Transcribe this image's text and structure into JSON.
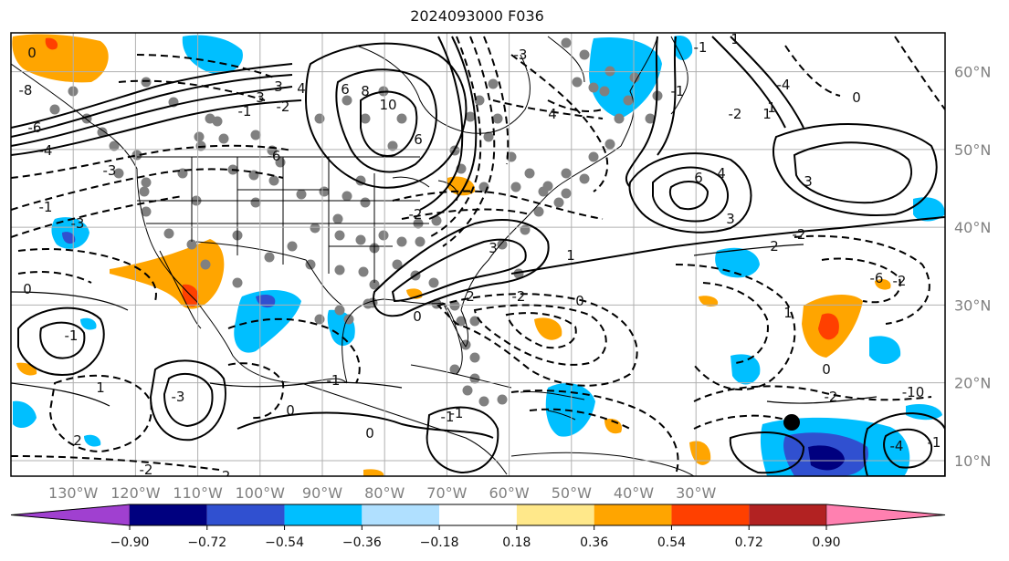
{
  "title": "2024093000 F036",
  "map": {
    "lon_range": [
      -140,
      10
    ],
    "lat_range": [
      8,
      65
    ],
    "lat_labels": [
      "60°N",
      "50°N",
      "40°N",
      "30°N",
      "20°N",
      "10°N"
    ],
    "lat_values": [
      60,
      50,
      40,
      30,
      20,
      10
    ],
    "lon_labels": [
      "130°W",
      "120°W",
      "110°W",
      "100°W",
      "90°W",
      "80°W",
      "70°W",
      "60°W",
      "50°W",
      "40°W",
      "30°W"
    ],
    "lon_values": [
      -130,
      -120,
      -110,
      -100,
      -90,
      -80,
      -70,
      -60,
      -50,
      -40,
      -30
    ],
    "grid": true,
    "contour_labels": [
      "0",
      "-8",
      "-6",
      "-4",
      "-3",
      "-1",
      "-3",
      "3",
      "4",
      "8",
      "10",
      "6",
      "-6",
      "-2",
      "-1",
      "3",
      "6",
      "4",
      "-1",
      "1",
      "-3",
      "-2",
      "3",
      "1",
      "2",
      "0",
      "-2",
      "0",
      "-1",
      "-3",
      "-2",
      "2",
      "1",
      "-1",
      "0",
      "0",
      "-1",
      "-2",
      "2",
      "1",
      "0",
      "-10",
      "-4",
      "-2",
      "1",
      "-4",
      "3",
      "0",
      "6",
      "4",
      "-6",
      "-2",
      "3",
      "-1",
      "-1",
      "-2",
      "0",
      "-1",
      "-2",
      "1"
    ]
  },
  "colorbar": {
    "ticks": [
      "−0.90",
      "−0.72",
      "−0.54",
      "−0.36",
      "−0.18",
      "0.18",
      "0.36",
      "0.54",
      "0.72",
      "0.90"
    ],
    "colors": [
      "#a040d0",
      "#00007f",
      "#3050d0",
      "#00bfff",
      "#b0e0ff",
      "#ffffff",
      "#ffe88a",
      "#ffa500",
      "#ff4000",
      "#b22222",
      "#ff80b0"
    ],
    "extend": "both"
  },
  "colors": {
    "grid": "#b0b0b0",
    "contour": "#000000",
    "dots": "#808080"
  }
}
